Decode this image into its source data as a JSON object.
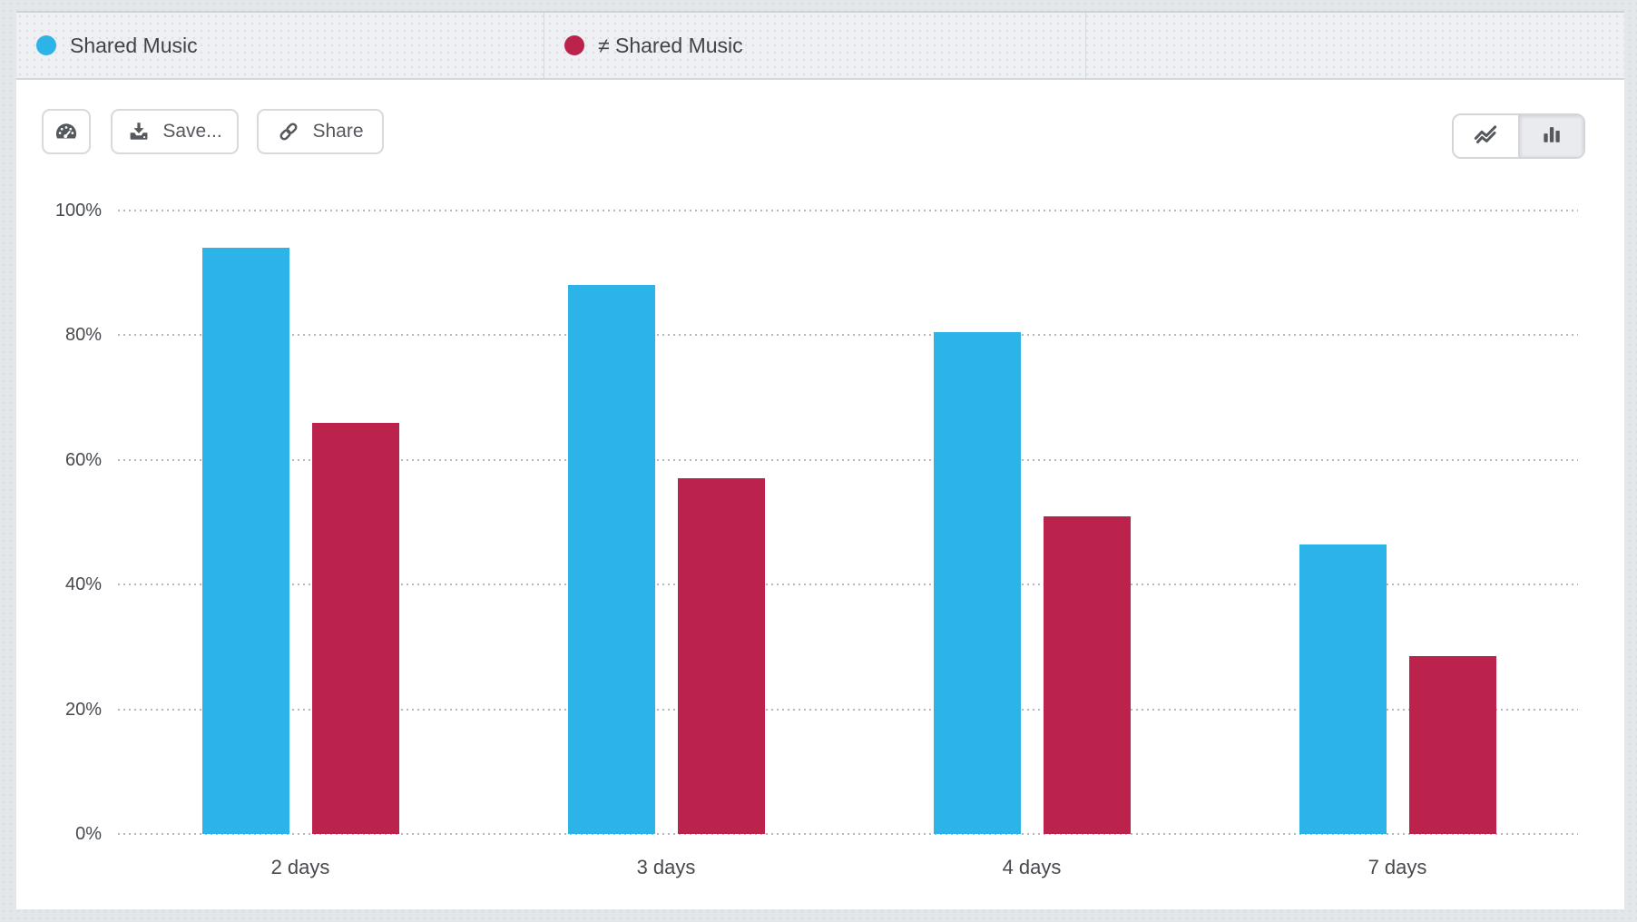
{
  "legend": {
    "items": [
      {
        "label": "Shared Music",
        "color": "#2CB4E8"
      },
      {
        "label": "≠ Shared Music",
        "color": "#BC234C"
      }
    ]
  },
  "toolbar": {
    "dashboard_icon": "gauge-icon",
    "save_label": "Save...",
    "save_icon": "download-icon",
    "share_label": "Share",
    "share_icon": "link-icon"
  },
  "view_toggle": {
    "options": [
      {
        "name": "line-chart",
        "icon": "line-chart-icon",
        "selected": false
      },
      {
        "name": "bar-chart",
        "icon": "bar-chart-icon",
        "selected": true
      }
    ]
  },
  "chart_data": {
    "type": "bar",
    "title": "",
    "categories": [
      "2 days",
      "3 days",
      "4 days",
      "7 days"
    ],
    "series": [
      {
        "name": "Shared Music",
        "color": "#2CB4E8",
        "values": [
          94,
          88,
          80.5,
          46.5
        ]
      },
      {
        "name": "≠ Shared Music",
        "color": "#BC234C",
        "values": [
          66,
          57,
          51,
          28.5
        ]
      }
    ],
    "ylabel": "",
    "xlabel": "",
    "ylim": [
      0,
      100
    ],
    "ytick_labels": [
      "100%",
      "80%",
      "60%",
      "40%",
      "20%",
      "0%"
    ],
    "grid": "horizontal-dotted",
    "legend_position": "top"
  }
}
